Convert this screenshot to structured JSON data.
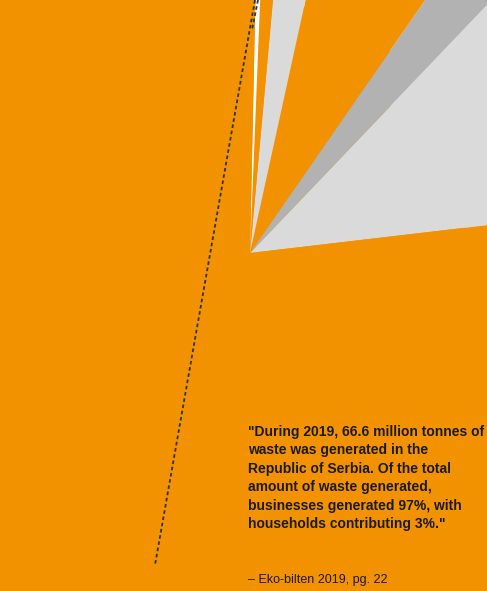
{
  "chart_data": {
    "type": "pie",
    "values": [
      11,
      2.5,
      6.2,
      2,
      0.8,
      0.3,
      77.2
    ],
    "colors": [
      "#dadada",
      "#b2b2b2",
      "#f39200",
      "#dadada",
      "#f39200",
      "#ffffff",
      "#f39200"
    ],
    "annotations": [
      "\"During 2019, 66.6 million tonnes of waste was generated in the Republic of Serbia. Of the total amount of waste generated, businesses generated 97%, with households contributing 3%.\"",
      "– Eko-bilten 2019, pg. 22"
    ]
  }
}
